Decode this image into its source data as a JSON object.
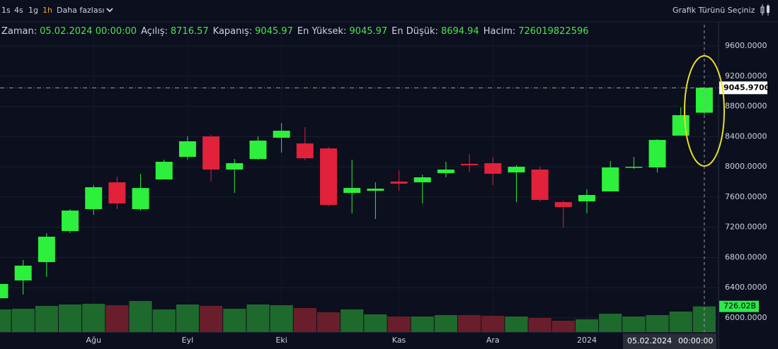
{
  "toolbar": {
    "intervals": [
      "1s",
      "4s",
      "1g",
      "1h"
    ],
    "more": "Daha fazlası",
    "chart_type": "Grafik Türünü Seçiniz"
  },
  "legend": [
    {
      "label": "Zaman:",
      "value": "05.02.2024 00:00:00"
    },
    {
      "label": "Açılış:",
      "value": 8716.57
    },
    {
      "label": "Kapanış:",
      "value": 9045.97
    },
    {
      "label": "En Yüksek:",
      "value": 9045.97
    },
    {
      "label": "En Düşük:",
      "value": 8694.94
    },
    {
      "label": "Hacim:",
      "value": 726019822596
    }
  ],
  "chart_data": {
    "type": "candlestick",
    "categories": [
      null,
      null,
      null,
      null,
      "Ağu",
      null,
      null,
      null,
      "Eyl",
      null,
      null,
      null,
      "Eki",
      null,
      null,
      null,
      null,
      "Kas",
      null,
      null,
      null,
      "Ara",
      null,
      null,
      null,
      "2024",
      null,
      null,
      null,
      null,
      null
    ],
    "open": [
      6260,
      6496,
      6739,
      7150,
      7440,
      7795,
      7440,
      7833,
      8132,
      8403,
      7964,
      8104,
      8385,
      8310,
      8244,
      7655,
      7683,
      7805,
      7795,
      7917,
      8039,
      8048,
      7926,
      7964,
      7533,
      7543,
      7674,
      7992,
      7992,
      8413,
      8716.57
    ],
    "high": [
      6480,
      6767,
      7122,
      7440,
      7758,
      7870,
      7908,
      8095,
      8403,
      8422,
      8104,
      8403,
      8581,
      8525,
      8263,
      8095,
      7795,
      7954,
      7898,
      8067,
      8169,
      8132,
      8020,
      8001,
      7552,
      7702,
      8076,
      8132,
      8366,
      8787,
      9045.97
    ],
    "low": [
      6230,
      6309,
      6542,
      7122,
      7365,
      7440,
      7421,
      7833,
      8095,
      7805,
      7655,
      8095,
      8188,
      8085,
      7477,
      7384,
      7309,
      7683,
      7515,
      7861,
      7926,
      7758,
      7533,
      7543,
      7197,
      7384,
      7674,
      7973,
      7926,
      8413,
      8694.94
    ],
    "close": [
      6450,
      6692,
      7075,
      7421,
      7730,
      7515,
      7720,
      8067,
      8338,
      7964,
      8048,
      8347,
      8478,
      8113,
      7496,
      7720,
      7711,
      7777,
      7861,
      7964,
      8020,
      7908,
      8001,
      7562,
      7468,
      7627,
      7992,
      8001,
      8356,
      8684,
      9045.97
    ],
    "volume": [
      640000000000,
      660000000000,
      740000000000,
      780000000000,
      800000000000,
      760000000000,
      880000000000,
      640000000000,
      780000000000,
      740000000000,
      660000000000,
      780000000000,
      760000000000,
      680000000000,
      560000000000,
      640000000000,
      500000000000,
      440000000000,
      440000000000,
      480000000000,
      480000000000,
      460000000000,
      440000000000,
      400000000000,
      320000000000,
      360000000000,
      520000000000,
      440000000000,
      480000000000,
      580000000000,
      726019822596
    ],
    "up_color": "#2cf03c",
    "down_color": "#e2213a",
    "volume_up_color": "#1e6a2c",
    "volume_down_color": "#6a1e2b",
    "ylim": [
      5813,
      9881
    ],
    "yticks": [
      {
        "value": 6000,
        "label": "6000.0000"
      },
      {
        "value": 6400,
        "label": "6400.0000"
      },
      {
        "value": 6800,
        "label": "6800.0000"
      },
      {
        "value": 7200,
        "label": "7200.0000"
      },
      {
        "value": 7600,
        "label": "7600.0000"
      },
      {
        "value": 8000,
        "label": "8000.0000"
      },
      {
        "value": 8400,
        "label": "8400.0000"
      },
      {
        "value": 8800,
        "label": "8800.0000"
      },
      {
        "value": 9200,
        "label": "9200.0000"
      },
      {
        "value": 9600,
        "label": "9600.0000"
      }
    ],
    "y2lim": [
      0,
      2000000000000
    ],
    "grid": true,
    "price_marker": {
      "value": 9045.97,
      "label": "9045.9700"
    },
    "volume_marker": {
      "value": 726019822596,
      "label": "726.02B"
    },
    "crosshair": {
      "date": "05.02.2024",
      "time": "00:00:00"
    }
  }
}
